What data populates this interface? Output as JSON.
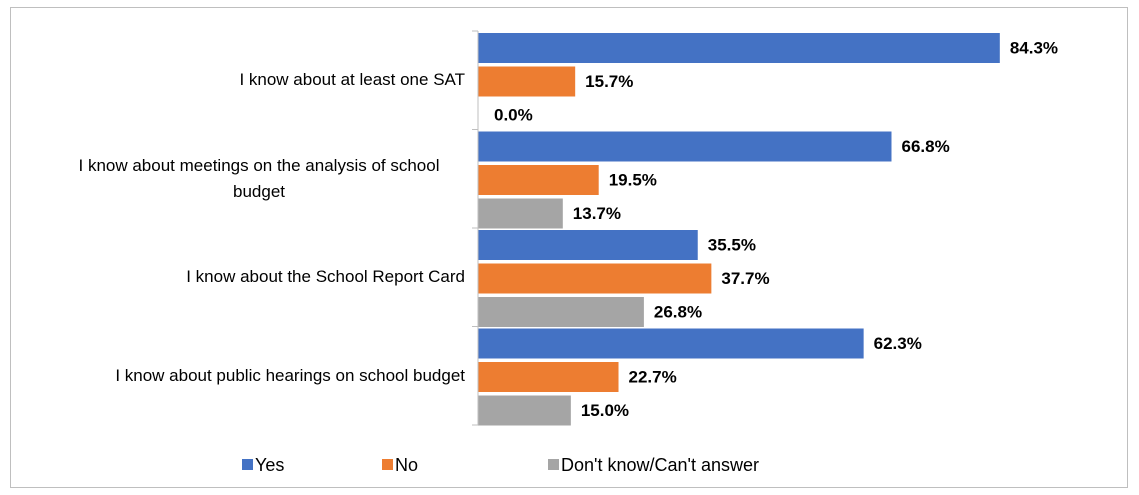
{
  "chart_data": {
    "type": "hbar",
    "categories": [
      "I know about at least one SAT",
      "I know about meetings on the analysis of school budget",
      "I know about the School Report Card",
      "I know about public hearings on school budget"
    ],
    "series": [
      {
        "name": "Yes",
        "color": "#4472c4",
        "values": [
          84.3,
          66.8,
          35.5,
          62.3
        ],
        "value_labels": [
          "84.3%",
          "66.8%",
          "35.5%",
          "62.3%"
        ]
      },
      {
        "name": "No",
        "color": "#ed7d31",
        "values": [
          15.7,
          19.5,
          37.7,
          22.7
        ],
        "value_labels": [
          "15.7%",
          "19.5%",
          "37.7%",
          "22.7%"
        ]
      },
      {
        "name": "Don't know/Can't answer",
        "color": "#a5a5a5",
        "values": [
          0.0,
          13.7,
          26.8,
          15.0
        ],
        "value_labels": [
          "0.0%",
          "13.7%",
          "26.8%",
          "15.0%"
        ]
      }
    ],
    "legend": "bottom"
  }
}
